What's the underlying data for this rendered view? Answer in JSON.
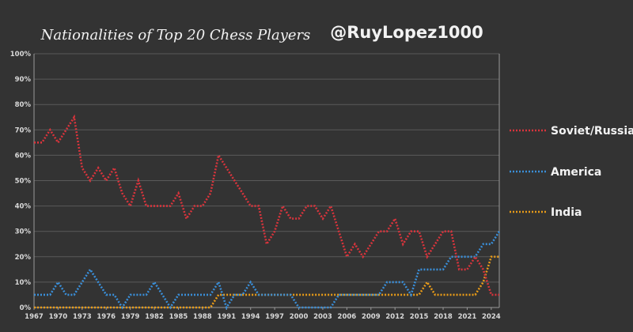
{
  "title": "Nationalities of Top 20 Chess Players",
  "handle": "@RuyLopez1000",
  "colors": {
    "background": "#333333",
    "grid": "#5a5a5a",
    "axis": "#9a9a9a",
    "Soviet/Russia": "#d9343c",
    "America": "#3a8fd9",
    "India": "#e89b18"
  },
  "chart_data": {
    "type": "line",
    "title": "Nationalities of Top 20 Chess Players",
    "xlabel": "",
    "ylabel": "",
    "x": [
      1967,
      1968,
      1969,
      1970,
      1971,
      1972,
      1973,
      1974,
      1975,
      1976,
      1977,
      1978,
      1979,
      1980,
      1981,
      1982,
      1983,
      1984,
      1985,
      1986,
      1987,
      1988,
      1989,
      1990,
      1991,
      1992,
      1993,
      1994,
      1995,
      1996,
      1997,
      1998,
      1999,
      2000,
      2001,
      2002,
      2003,
      2004,
      2005,
      2006,
      2007,
      2008,
      2009,
      2010,
      2011,
      2012,
      2013,
      2014,
      2015,
      2016,
      2017,
      2018,
      2019,
      2020,
      2021,
      2022,
      2023,
      2024,
      2025
    ],
    "x_ticks": [
      "1967",
      "1970",
      "1973",
      "1976",
      "1979",
      "1982",
      "1985",
      "1988",
      "1991",
      "1994",
      "1997",
      "2000",
      "2003",
      "2006",
      "2009",
      "2012",
      "2015",
      "2018",
      "2021",
      "2024"
    ],
    "y_ticks": [
      "0%",
      "10%",
      "20%",
      "30%",
      "40%",
      "50%",
      "60%",
      "70%",
      "80%",
      "90%",
      "100%"
    ],
    "ylim": [
      0,
      100
    ],
    "grid": true,
    "legend": "right",
    "series": [
      {
        "name": "Soviet/Russia",
        "values": [
          65,
          65,
          70,
          65,
          70,
          75,
          55,
          50,
          55,
          50,
          55,
          45,
          40,
          50,
          40,
          40,
          40,
          40,
          45,
          35,
          40,
          40,
          45,
          60,
          55,
          50,
          45,
          40,
          40,
          25,
          30,
          40,
          35,
          35,
          40,
          40,
          35,
          40,
          30,
          20,
          25,
          20,
          25,
          30,
          30,
          35,
          25,
          30,
          30,
          20,
          25,
          30,
          30,
          15,
          15,
          20,
          15,
          5,
          5
        ]
      },
      {
        "name": "America",
        "values": [
          5,
          5,
          5,
          10,
          5,
          5,
          10,
          15,
          10,
          5,
          5,
          0,
          5,
          5,
          5,
          10,
          5,
          0,
          5,
          5,
          5,
          5,
          5,
          10,
          0,
          5,
          5,
          10,
          5,
          5,
          5,
          5,
          5,
          0,
          0,
          0,
          0,
          0,
          5,
          5,
          5,
          5,
          5,
          5,
          10,
          10,
          10,
          5,
          15,
          15,
          15,
          15,
          20,
          20,
          20,
          20,
          25,
          25,
          30
        ]
      },
      {
        "name": "India",
        "values": [
          0,
          0,
          0,
          0,
          0,
          0,
          0,
          0,
          0,
          0,
          0,
          0,
          0,
          0,
          0,
          0,
          0,
          0,
          0,
          0,
          0,
          0,
          0,
          5,
          5,
          5,
          5,
          5,
          5,
          5,
          5,
          5,
          5,
          5,
          5,
          5,
          5,
          5,
          5,
          5,
          5,
          5,
          5,
          5,
          5,
          5,
          5,
          5,
          5,
          10,
          5,
          5,
          5,
          5,
          5,
          5,
          10,
          20,
          20
        ]
      }
    ]
  }
}
